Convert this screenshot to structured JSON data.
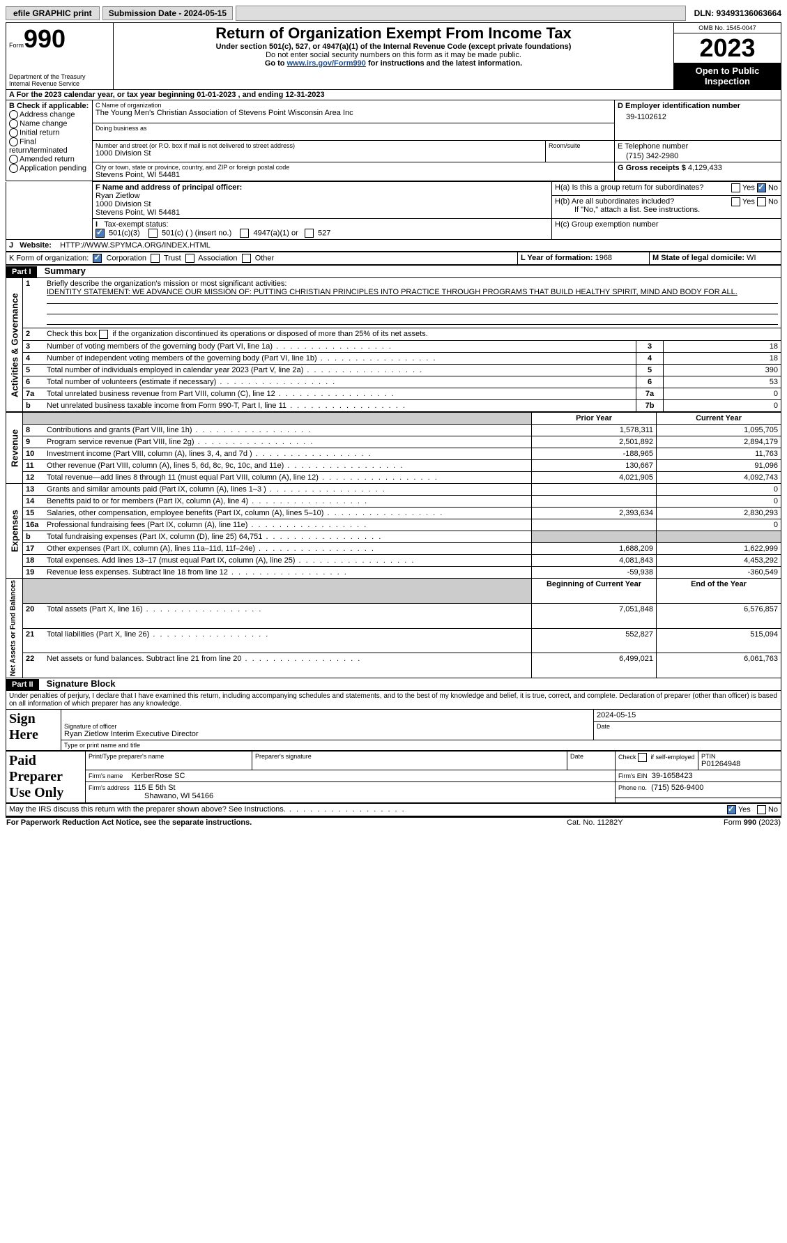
{
  "topbar": {
    "efile": "efile GRAPHIC print",
    "submission": "Submission Date - 2024-05-15",
    "dln": "DLN: 93493136063664"
  },
  "header": {
    "form_label": "Form",
    "form_no": "990",
    "dept": "Department of the Treasury",
    "irs": "Internal Revenue Service",
    "title": "Return of Organization Exempt From Income Tax",
    "sub1": "Under section 501(c), 527, or 4947(a)(1) of the Internal Revenue Code (except private foundations)",
    "sub2": "Do not enter social security numbers on this form as it may be made public.",
    "sub3_pre": "Go to ",
    "sub3_link": "www.irs.gov/Form990",
    "sub3_post": " for instructions and the latest information.",
    "omb": "OMB No. 1545-0047",
    "year": "2023",
    "open": "Open to Public Inspection"
  },
  "A": {
    "text": "For the 2023 calendar year, or tax year beginning 01-01-2023    , and ending 12-31-2023"
  },
  "B": {
    "label": "B Check if applicable:",
    "opts": [
      "Address change",
      "Name change",
      "Initial return",
      "Final return/terminated",
      "Amended return",
      "Application pending"
    ]
  },
  "C": {
    "name_label": "C Name of organization",
    "name": "The Young Men's Christian Association of Stevens Point Wisconsin Area Inc",
    "dba_label": "Doing business as",
    "street_label": "Number and street (or P.O. box if mail is not delivered to street address)",
    "street": "1000 Division St",
    "room_label": "Room/suite",
    "city_label": "City or town, state or province, country, and ZIP or foreign postal code",
    "city": "Stevens Point, WI  54481"
  },
  "D": {
    "label": "D Employer identification number",
    "val": "39-1102612"
  },
  "E": {
    "label": "E Telephone number",
    "val": "(715) 342-2980"
  },
  "G": {
    "label": "G Gross receipts $",
    "val": "4,129,433"
  },
  "F": {
    "label": "F  Name and address of principal officer:",
    "name": "Ryan Zietlow",
    "street": "1000 Division St",
    "city": "Stevens Point, WI  54481"
  },
  "H": {
    "a": "H(a)  Is this a group return for subordinates?",
    "b": "H(b)  Are all subordinates included?",
    "b_note": "If \"No,\" attach a list. See instructions.",
    "c": "H(c)  Group exemption number"
  },
  "I": {
    "label": "Tax-exempt status:",
    "o1": "501(c)(3)",
    "o2": "501(c) (  ) (insert no.)",
    "o3": "4947(a)(1) or",
    "o4": "527"
  },
  "J": {
    "label": "Website:",
    "val": "HTTP://WWW.SPYMCA.ORG/INDEX.HTML"
  },
  "K": {
    "label": "K Form of organization:",
    "o1": "Corporation",
    "o2": "Trust",
    "o3": "Association",
    "o4": "Other"
  },
  "L": {
    "label": "L Year of formation:",
    "val": "1968"
  },
  "M": {
    "label": "M State of legal domicile:",
    "val": "WI"
  },
  "part1": {
    "bar": "Part I",
    "title": "Summary",
    "l1a": "Briefly describe the organization's mission or most significant activities:",
    "l1b": "IDENTITY STATEMENT: WE ADVANCE OUR MISSION OF: PUTTING CHRISTIAN PRINCIPLES INTO PRACTICE THROUGH PROGRAMS THAT BUILD HEALTHY SPIRIT, MIND AND BODY FOR ALL.",
    "l2": "Check this box          if the organization discontinued its operations or disposed of more than 25% of its net assets.",
    "sec_ag": "Activities & Governance",
    "sec_rev": "Revenue",
    "sec_exp": "Expenses",
    "sec_na": "Net Assets or Fund Balances",
    "rows_ag": [
      {
        "n": "3",
        "t": "Number of voting members of the governing body (Part VI, line 1a)",
        "c": "3",
        "v": "18"
      },
      {
        "n": "4",
        "t": "Number of independent voting members of the governing body (Part VI, line 1b)",
        "c": "4",
        "v": "18"
      },
      {
        "n": "5",
        "t": "Total number of individuals employed in calendar year 2023 (Part V, line 2a)",
        "c": "5",
        "v": "390"
      },
      {
        "n": "6",
        "t": "Total number of volunteers (estimate if necessary)",
        "c": "6",
        "v": "53"
      },
      {
        "n": "7a",
        "t": "Total unrelated business revenue from Part VIII, column (C), line 12",
        "c": "7a",
        "v": "0"
      },
      {
        "n": "b",
        "t": "Net unrelated business taxable income from Form 990-T, Part I, line 11",
        "c": "7b",
        "v": "0"
      }
    ],
    "th_prior": "Prior Year",
    "th_curr": "Current Year",
    "rows_rev": [
      {
        "n": "8",
        "t": "Contributions and grants (Part VIII, line 1h)",
        "p": "1,578,311",
        "c": "1,095,705"
      },
      {
        "n": "9",
        "t": "Program service revenue (Part VIII, line 2g)",
        "p": "2,501,892",
        "c": "2,894,179"
      },
      {
        "n": "10",
        "t": "Investment income (Part VIII, column (A), lines 3, 4, and 7d )",
        "p": "-188,965",
        "c": "11,763"
      },
      {
        "n": "11",
        "t": "Other revenue (Part VIII, column (A), lines 5, 6d, 8c, 9c, 10c, and 11e)",
        "p": "130,667",
        "c": "91,096"
      },
      {
        "n": "12",
        "t": "Total revenue—add lines 8 through 11 (must equal Part VIII, column (A), line 12)",
        "p": "4,021,905",
        "c": "4,092,743"
      }
    ],
    "rows_exp": [
      {
        "n": "13",
        "t": "Grants and similar amounts paid (Part IX, column (A), lines 1–3 )",
        "p": "",
        "c": "0"
      },
      {
        "n": "14",
        "t": "Benefits paid to or for members (Part IX, column (A), line 4)",
        "p": "",
        "c": "0"
      },
      {
        "n": "15",
        "t": "Salaries, other compensation, employee benefits (Part IX, column (A), lines 5–10)",
        "p": "2,393,634",
        "c": "2,830,293"
      },
      {
        "n": "16a",
        "t": "Professional fundraising fees (Part IX, column (A), line 11e)",
        "p": "",
        "c": "0"
      },
      {
        "n": "b",
        "t": "Total fundraising expenses (Part IX, column (D), line 25) 64,751",
        "p": "GREY",
        "c": "GREY"
      },
      {
        "n": "17",
        "t": "Other expenses (Part IX, column (A), lines 11a–11d, 11f–24e)",
        "p": "1,688,209",
        "c": "1,622,999"
      },
      {
        "n": "18",
        "t": "Total expenses. Add lines 13–17 (must equal Part IX, column (A), line 25)",
        "p": "4,081,843",
        "c": "4,453,292"
      },
      {
        "n": "19",
        "t": "Revenue less expenses. Subtract line 18 from line 12",
        "p": "-59,938",
        "c": "-360,549"
      }
    ],
    "th_beg": "Beginning of Current Year",
    "th_end": "End of the Year",
    "rows_na": [
      {
        "n": "20",
        "t": "Total assets (Part X, line 16)",
        "p": "7,051,848",
        "c": "6,576,857"
      },
      {
        "n": "21",
        "t": "Total liabilities (Part X, line 26)",
        "p": "552,827",
        "c": "515,094"
      },
      {
        "n": "22",
        "t": "Net assets or fund balances. Subtract line 21 from line 20",
        "p": "6,499,021",
        "c": "6,061,763"
      }
    ]
  },
  "part2": {
    "bar": "Part II",
    "title": "Signature Block",
    "decl": "Under penalties of perjury, I declare that I have examined this return, including accompanying schedules and statements, and to the best of my knowledge and belief, it is true, correct, and complete. Declaration of preparer (other than officer) is based on all information of which preparer has any knowledge.",
    "sign_here": "Sign Here",
    "sig_officer": "Signature of officer",
    "sig_name": "Ryan Zietlow  Interim Executive Director",
    "sig_type": "Type or print name and title",
    "date_label": "Date",
    "date_val": "2024-05-15",
    "paid": "Paid Preparer Use Only",
    "pp_name_label": "Print/Type preparer's name",
    "pp_sig_label": "Preparer's signature",
    "pp_date_label": "Date",
    "pp_check": "Check         if self-employed",
    "pp_ptin_label": "PTIN",
    "pp_ptin": "P01264948",
    "firm_name_label": "Firm's name",
    "firm_name": "KerberRose SC",
    "firm_ein_label": "Firm's EIN",
    "firm_ein": "39-1658423",
    "firm_addr_label": "Firm's address",
    "firm_addr1": "115 E 5th St",
    "firm_addr2": "Shawano, WI  54166",
    "phone_label": "Phone no.",
    "phone": "(715) 526-9400",
    "discuss": "May the IRS discuss this return with the preparer shown above? See Instructions."
  },
  "footer": {
    "pra": "For Paperwork Reduction Act Notice, see the separate instructions.",
    "cat": "Cat. No. 11282Y",
    "form": "Form 990 (2023)"
  },
  "yn": {
    "yes": "Yes",
    "no": "No"
  }
}
